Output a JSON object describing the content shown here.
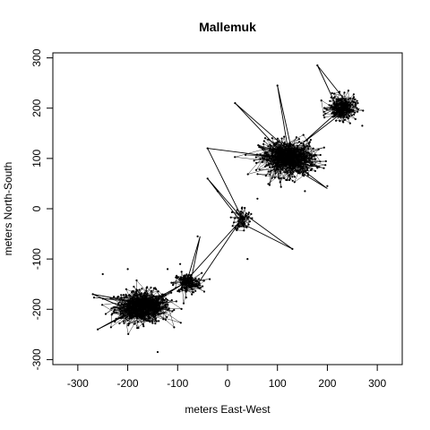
{
  "chart_data": {
    "type": "scatter",
    "title": "Mallemuk",
    "xlabel": "meters East-West",
    "ylabel": "meters North-South",
    "xlim": [
      -350,
      350
    ],
    "ylim": [
      -310,
      310
    ],
    "xticks": [
      -300,
      -200,
      -100,
      0,
      100,
      200,
      300
    ],
    "yticks": [
      -300,
      -200,
      -100,
      0,
      100,
      200,
      300
    ],
    "grid": false,
    "legend": "none",
    "mark_color": "#000000",
    "clusters": [
      {
        "center": [
          -170,
          -195
        ],
        "spread": [
          28,
          16
        ],
        "count": 520
      },
      {
        "center": [
          -80,
          -148
        ],
        "spread": [
          14,
          10
        ],
        "count": 140
      },
      {
        "center": [
          30,
          -20
        ],
        "spread": [
          8,
          12
        ],
        "count": 70
      },
      {
        "center": [
          120,
          100
        ],
        "spread": [
          28,
          18
        ],
        "count": 520
      },
      {
        "center": [
          230,
          200
        ],
        "spread": [
          14,
          12
        ],
        "count": 230
      }
    ],
    "outliers": [
      [
        -270,
        -170
      ],
      [
        -260,
        -240
      ],
      [
        -250,
        -130
      ],
      [
        -200,
        -120
      ],
      [
        -140,
        -285
      ],
      [
        -120,
        -120
      ],
      [
        -60,
        -55
      ],
      [
        -40,
        60
      ],
      [
        -40,
        120
      ],
      [
        40,
        -100
      ],
      [
        15,
        210
      ],
      [
        100,
        245
      ],
      [
        130,
        -80
      ],
      [
        180,
        285
      ],
      [
        200,
        45
      ],
      [
        270,
        165
      ],
      [
        155,
        35
      ],
      [
        -95,
        -110
      ],
      [
        60,
        20
      ],
      [
        -20,
        35
      ]
    ],
    "tracks": [
      [
        [
          -180,
          -190
        ],
        [
          -120,
          -185
        ],
        [
          -200,
          -210
        ],
        [
          -90,
          -150
        ],
        [
          -170,
          -200
        ]
      ],
      [
        [
          -75,
          -150
        ],
        [
          -55,
          -55
        ],
        [
          -80,
          -140
        ],
        [
          25,
          -25
        ],
        [
          -60,
          -150
        ]
      ],
      [
        [
          30,
          -20
        ],
        [
          -40,
          60
        ],
        [
          30,
          -30
        ],
        [
          130,
          -80
        ],
        [
          40,
          -15
        ]
      ],
      [
        [
          30,
          -20
        ],
        [
          -40,
          120
        ],
        [
          120,
          100
        ],
        [
          200,
          40
        ],
        [
          110,
          95
        ]
      ],
      [
        [
          120,
          100
        ],
        [
          15,
          210
        ],
        [
          130,
          110
        ],
        [
          100,
          245
        ],
        [
          125,
          95
        ]
      ],
      [
        [
          220,
          200
        ],
        [
          180,
          285
        ],
        [
          240,
          210
        ],
        [
          150,
          130
        ],
        [
          235,
          195
        ]
      ],
      [
        [
          -200,
          -200
        ],
        [
          -270,
          -170
        ],
        [
          -160,
          -190
        ],
        [
          -260,
          -240
        ],
        [
          -150,
          -180
        ]
      ]
    ]
  }
}
